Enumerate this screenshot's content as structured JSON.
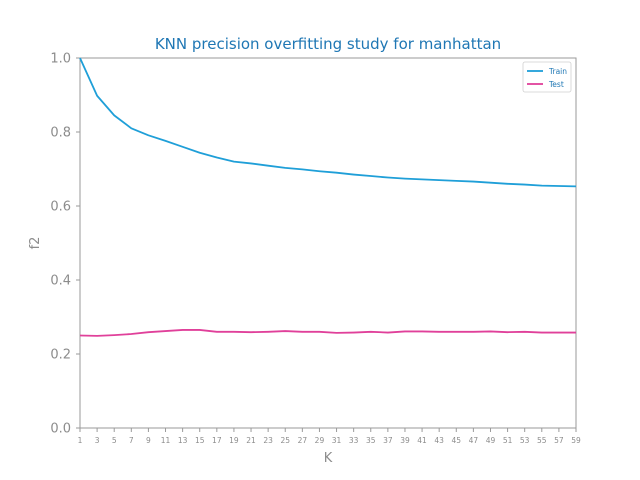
{
  "chart_data": {
    "type": "line",
    "title": "KNN precision overfitting study for manhattan",
    "xlabel": "K",
    "ylabel": "f2",
    "x": [
      1,
      3,
      5,
      7,
      9,
      11,
      13,
      15,
      17,
      19,
      21,
      23,
      25,
      27,
      29,
      31,
      33,
      35,
      37,
      39,
      41,
      43,
      45,
      47,
      49,
      51,
      53,
      55,
      57,
      59
    ],
    "xlim": [
      1,
      59
    ],
    "ylim": [
      0.0,
      1.0
    ],
    "yticks": [
      0.0,
      0.2,
      0.4,
      0.6,
      0.8,
      1.0
    ],
    "ytick_labels": [
      "0.0",
      "0.2",
      "0.4",
      "0.6",
      "0.8",
      "1.0"
    ],
    "xtick_labels": [
      "1",
      "3",
      "5",
      "7",
      "9",
      "11",
      "13",
      "15",
      "17",
      "19",
      "21",
      "23",
      "25",
      "27",
      "29",
      "31",
      "33",
      "35",
      "37",
      "39",
      "41",
      "43",
      "45",
      "47",
      "49",
      "51",
      "53",
      "55",
      "57",
      "59"
    ],
    "grid": false,
    "legend_position": "top-right",
    "series": [
      {
        "name": "Train",
        "color": "#1f9fd8",
        "values": [
          1.0,
          0.898,
          0.845,
          0.81,
          0.791,
          0.776,
          0.76,
          0.744,
          0.731,
          0.72,
          0.715,
          0.709,
          0.703,
          0.699,
          0.694,
          0.69,
          0.685,
          0.681,
          0.677,
          0.674,
          0.672,
          0.67,
          0.668,
          0.666,
          0.663,
          0.66,
          0.658,
          0.655,
          0.654,
          0.653
        ]
      },
      {
        "name": "Test",
        "color": "#e0409a",
        "values": [
          0.25,
          0.249,
          0.251,
          0.254,
          0.259,
          0.262,
          0.265,
          0.265,
          0.26,
          0.26,
          0.259,
          0.26,
          0.262,
          0.26,
          0.26,
          0.257,
          0.258,
          0.26,
          0.258,
          0.261,
          0.261,
          0.26,
          0.26,
          0.26,
          0.261,
          0.259,
          0.26,
          0.258,
          0.258,
          0.258
        ]
      }
    ]
  }
}
